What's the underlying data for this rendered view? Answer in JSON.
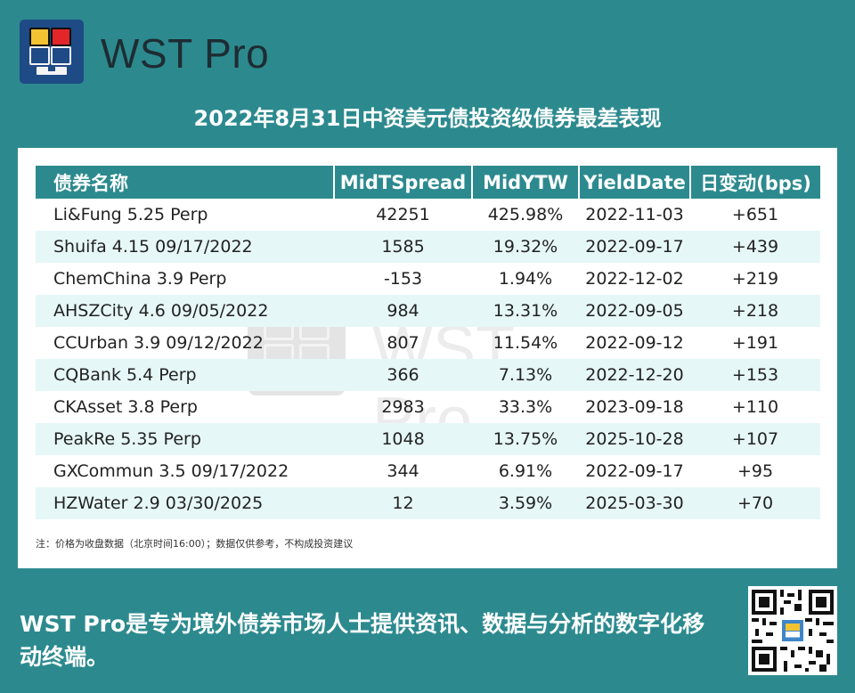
{
  "brand": {
    "name": "WST Pro"
  },
  "title": "2022年8月31日中资美元债投资级债券最差表现",
  "table": {
    "headers": [
      "债券名称",
      "MidTSpread",
      "MidYTW",
      "YieldDate",
      "日变动(bps)"
    ],
    "rows": [
      [
        "Li&Fung 5.25 Perp",
        "42251",
        "425.98%",
        "2022-11-03",
        "+651"
      ],
      [
        "Shuifa 4.15 09/17/2022",
        "1585",
        "19.32%",
        "2022-09-17",
        "+439"
      ],
      [
        "ChemChina 3.9 Perp",
        "-153",
        "1.94%",
        "2022-12-02",
        "+219"
      ],
      [
        "AHSZCity 4.6 09/05/2022",
        "984",
        "13.31%",
        "2022-09-05",
        "+218"
      ],
      [
        "CCUrban 3.9 09/12/2022",
        "807",
        "11.54%",
        "2022-09-12",
        "+191"
      ],
      [
        "CQBank 5.4 Perp",
        "366",
        "7.13%",
        "2022-12-20",
        "+153"
      ],
      [
        "CKAsset 3.8 Perp",
        "2983",
        "33.3%",
        "2023-09-18",
        "+110"
      ],
      [
        "PeakRe 5.35 Perp",
        "1048",
        "13.75%",
        "2025-10-28",
        "+107"
      ],
      [
        "GXCommun 3.5 09/17/2022",
        "344",
        "6.91%",
        "2022-09-17",
        "+95"
      ],
      [
        "HZWater 2.9 03/30/2025",
        "12",
        "3.59%",
        "2025-03-30",
        "+70"
      ]
    ]
  },
  "note": "注：价格为收盘数据（北京时间16:00）；数据仅供参考，不构成投资建议",
  "tagline": "WST Pro是专为境外债券市场人士提供资讯、数据与分析的数字化移动终端。",
  "colors": {
    "background": "#2c8a8f",
    "header": "#2c8a8f",
    "alt_row": "#e6f7f8",
    "logo": "#1e4a86"
  }
}
